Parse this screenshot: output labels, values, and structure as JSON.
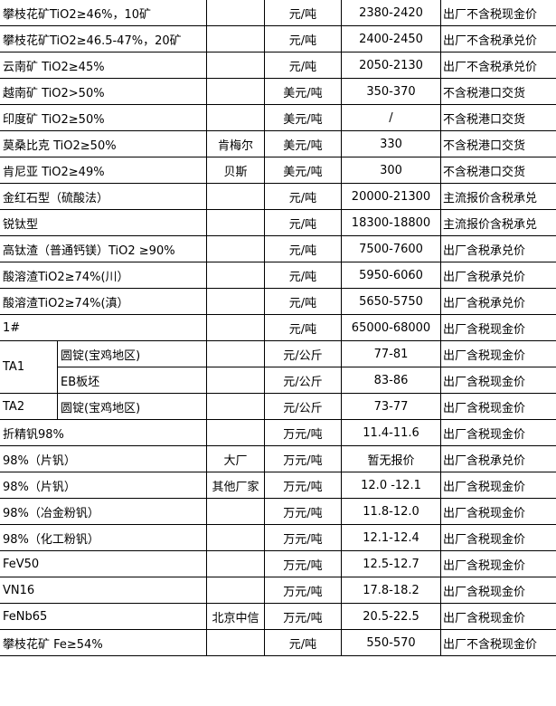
{
  "rows": [
    {
      "name": "攀枝花矿TiO2≥46%，10矿",
      "source": "",
      "unit": "元/吨",
      "price": "2380-2420",
      "note": "出厂不含税现金价"
    },
    {
      "name": "攀枝花矿TiO2≥46.5-47%，20矿",
      "source": "",
      "unit": "元/吨",
      "price": "2400-2450",
      "note": "出厂不含税承兑价"
    },
    {
      "name": "云南矿 TiO2≥45%",
      "source": "",
      "unit": "元/吨",
      "price": "2050-2130",
      "note": "出厂不含税承兑价"
    },
    {
      "name": "越南矿 TiO2>50%",
      "source": "",
      "unit": "美元/吨",
      "price": "350-370",
      "note": "不含税港口交货"
    },
    {
      "name": "印度矿 TiO2≥50%",
      "source": "",
      "unit": "美元/吨",
      "price": "/",
      "note": "不含税港口交货"
    },
    {
      "name": "莫桑比克 TiO2≥50%",
      "source": "肯梅尔",
      "unit": "美元/吨",
      "price": "330",
      "note": "不含税港口交货"
    },
    {
      "name": "肯尼亚 TiO2≥49%",
      "source": "贝斯",
      "unit": "美元/吨",
      "price": "300",
      "note": "不含税港口交货"
    },
    {
      "name": "金红石型（硫酸法）",
      "source": "",
      "unit": "元/吨",
      "price": "20000-21300",
      "note": "主流报价含税承兑"
    },
    {
      "name": "锐钛型",
      "source": "",
      "unit": "元/吨",
      "price": "18300-18800",
      "note": "主流报价含税承兑"
    },
    {
      "name": "高钛渣（普通钙镁）TiO2 ≥90%",
      "source": "",
      "unit": "元/吨",
      "price": "7500-7600",
      "note": "出厂含税承兑价"
    },
    {
      "name": "酸溶渣TiO2≥74%(川）",
      "source": "",
      "unit": "元/吨",
      "price": "5950-6060",
      "note": "出厂含税承兑价"
    },
    {
      "name": "酸溶渣TiO2≥74%(滇）",
      "source": "",
      "unit": "元/吨",
      "price": "5650-5750",
      "note": "出厂含税承兑价"
    },
    {
      "name": "1#",
      "source": "",
      "unit": "元/吨",
      "price": "65000-68000",
      "note": "出厂含税现金价"
    }
  ],
  "ta_rows": {
    "ta1": "TA1",
    "ta2": "TA2",
    "items": [
      {
        "name": "圆锭(宝鸡地区)",
        "unit": "元/公斤",
        "price": "77-81",
        "note": "出厂含税现金价"
      },
      {
        "name": "EB板坯",
        "unit": "元/公斤",
        "price": "83-86",
        "note": "出厂含税现金价"
      },
      {
        "name": "圆锭(宝鸡地区)",
        "unit": "元/公斤",
        "price": "73-77",
        "note": "出厂含税现金价"
      }
    ]
  },
  "rows2": [
    {
      "name": "折精钒98%",
      "source": "",
      "unit": "万元/吨",
      "price": "11.4-11.6",
      "note": "出厂含税现金价"
    },
    {
      "name": "98%（片钒）",
      "source": "大厂",
      "unit": "万元/吨",
      "price": "暂无报价",
      "note": "出厂含税承兑价"
    },
    {
      "name": "98%（片钒）",
      "source": "其他厂家",
      "unit": "万元/吨",
      "price": "12.0 -12.1",
      "note": "出厂含税现金价"
    },
    {
      "name": "98%（冶金粉钒）",
      "source": "",
      "unit": "万元/吨",
      "price": "11.8-12.0",
      "note": "出厂含税现金价"
    },
    {
      "name": "98%（化工粉钒）",
      "source": "",
      "unit": "万元/吨",
      "price": "12.1-12.4",
      "note": "出厂含税现金价"
    },
    {
      "name": "FeV50",
      "source": "",
      "unit": "万元/吨",
      "price": "12.5-12.7",
      "note": "出厂含税现金价"
    },
    {
      "name": "VN16",
      "source": "",
      "unit": "万元/吨",
      "price": "17.8-18.2",
      "note": "出厂含税现金价"
    },
    {
      "name": "FeNb65",
      "source": "北京中信",
      "unit": "万元/吨",
      "price": "20.5-22.5",
      "note": "出厂含税现金价"
    },
    {
      "name": "攀枝花矿 Fe≥54%",
      "source": "",
      "unit": "元/吨",
      "price": "550-570",
      "note": "出厂不含税现金价"
    }
  ]
}
